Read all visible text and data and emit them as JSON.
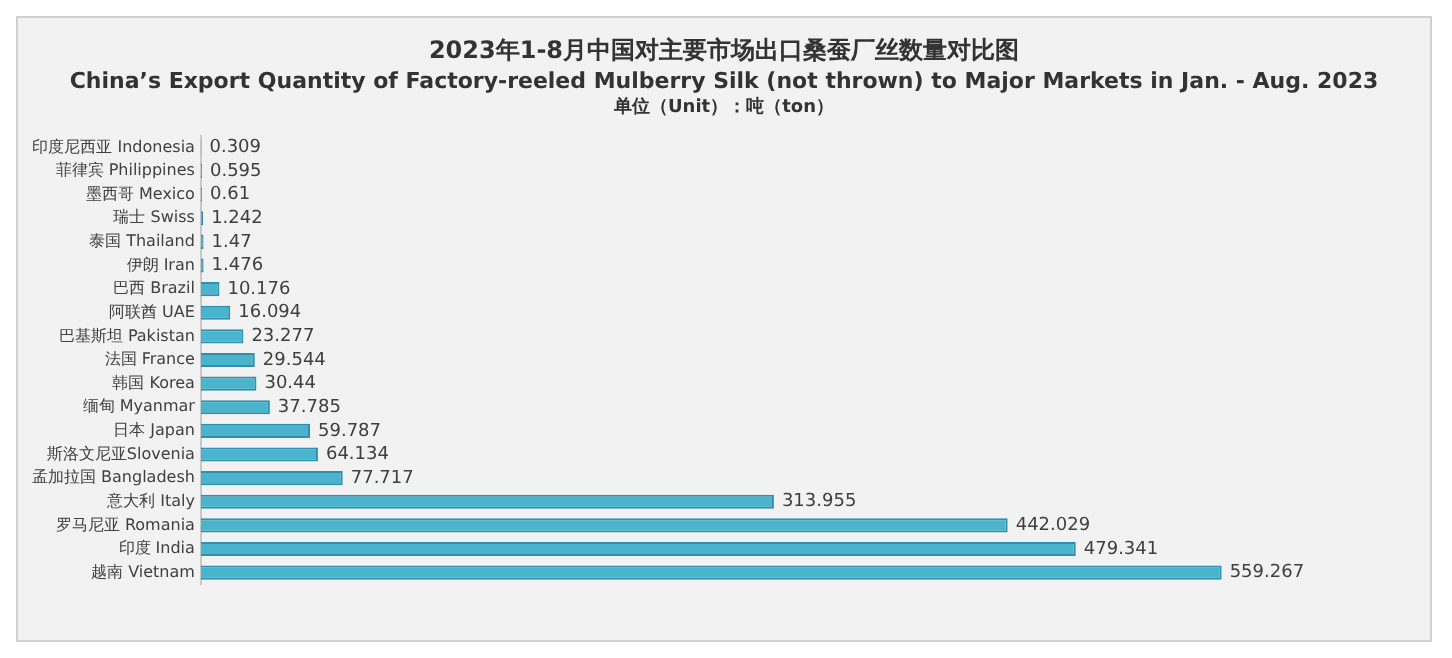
{
  "chart_data": {
    "type": "bar",
    "orientation": "horizontal",
    "title": "2023年1-8月中国对主要市场出口桑蚕厂丝数量对比图",
    "subtitle": "China’s Export Quantity of Factory-reeled Mulberry Silk (not thrown) to Major Markets in Jan. - Aug. 2023",
    "annotations": [
      "单位（Unit）：吨（ton）"
    ],
    "categories": [
      "印度尼西亚 Indonesia",
      "菲律宾 Philippines",
      "墨西哥 Mexico",
      "瑞士 Swiss",
      "泰国 Thailand",
      "伊朗 Iran",
      "巴西 Brazil",
      "阿联酋 UAE",
      "巴基斯坦 Pakistan",
      "法国 France",
      "韩国 Korea",
      "缅甸 Myanmar",
      "日本 Japan",
      "斯洛文尼亚Slovenia",
      "孟加拉国 Bangladesh",
      "意大利 Italy",
      "罗马尼亚 Romania",
      "印度 India",
      "越南 Vietnam"
    ],
    "values": [
      0.309,
      0.595,
      0.61,
      1.242,
      1.47,
      1.476,
      10.176,
      16.094,
      23.277,
      29.544,
      30.44,
      37.785,
      59.787,
      64.134,
      77.717,
      313.955,
      442.029,
      479.341,
      559.267
    ],
    "color": "#49b4cc",
    "data_labels": true,
    "legend": false
  }
}
